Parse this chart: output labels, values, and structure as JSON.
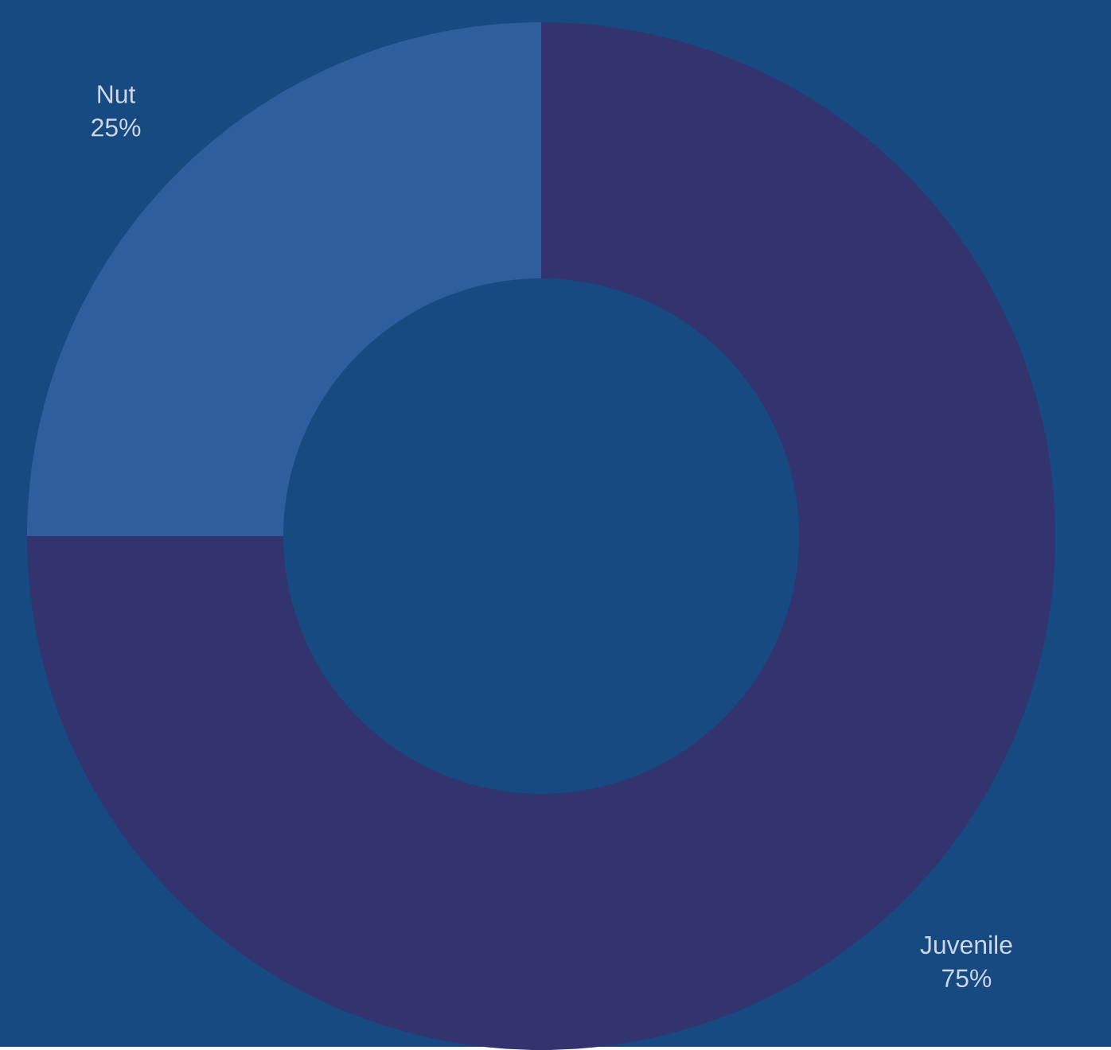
{
  "chart_data": {
    "type": "donut",
    "categories": [
      "Nut",
      "Juvenile"
    ],
    "values": [
      25,
      75
    ],
    "colors": [
      "#2f5e9c",
      "#33336f"
    ],
    "value_labels": [
      "25%",
      "75%"
    ]
  }
}
